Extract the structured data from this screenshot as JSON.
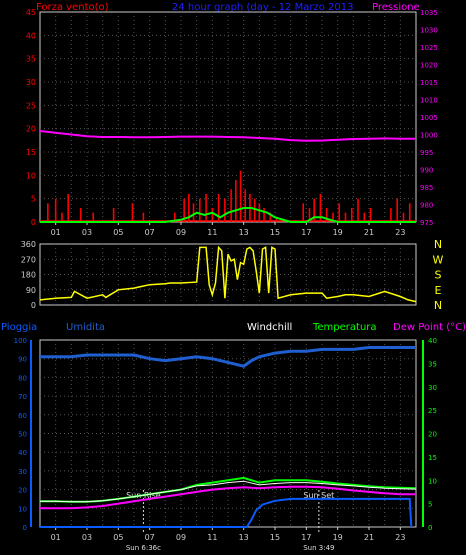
{
  "colors": {
    "background": "#000000",
    "grid": "#555555",
    "axis": "#cccccc",
    "wind": "#ff0000",
    "wind_avg": "#00ff00",
    "pressure": "#ff00ff",
    "wind_dir": "#ffff00",
    "humidity": "#1f5fd0",
    "rain": "#0a5cff",
    "temperature": "#00ff00",
    "windchill": "#ffffff",
    "dew_point": "#ff00ff",
    "title": "#2020ff",
    "left_label": "#ff0000",
    "right_label": "#ff00ff"
  },
  "top": {
    "left_label": "Forza vento(o)",
    "title": "24 hour graph (day - 12 Marzo 2013",
    "right_label": "Pressione",
    "left_ticks": [
      "45",
      "40",
      "35",
      "30",
      "25",
      "20",
      "15",
      "10",
      "5",
      "0"
    ],
    "right_ticks": [
      "1035",
      "1030",
      "1025",
      "1020",
      "1015",
      "1010",
      "1005",
      "1000",
      "995",
      "990",
      "985",
      "980",
      "975"
    ],
    "x_ticks": [
      "01",
      "03",
      "05",
      "07",
      "09",
      "11",
      "13",
      "15",
      "17",
      "19",
      "21",
      "23"
    ]
  },
  "mid": {
    "left_ticks": [
      "360",
      "270",
      "180",
      "90",
      "0"
    ],
    "compass": [
      "N",
      "W",
      "S",
      "E",
      "N"
    ],
    "x_ticks": [
      "01",
      "03",
      "05",
      "07",
      "09",
      "11",
      "13",
      "15",
      "17",
      "19",
      "21",
      "23"
    ]
  },
  "bottom": {
    "label_rain": "Pioggia",
    "label_humidity": "Umidita",
    "label_windchill": "Windchill",
    "label_temperature": "Temperatura",
    "label_dewpoint": "Dew Point (°C)",
    "left_ticks": [
      "100",
      "90",
      "80",
      "70",
      "60",
      "50",
      "40",
      "30",
      "20",
      "10",
      "0"
    ],
    "right_ticks": [
      "40",
      "35",
      "30",
      "25",
      "20",
      "15",
      "10",
      "5",
      "0"
    ],
    "x_ticks": [
      "01",
      "03",
      "05",
      "07",
      "09",
      "11",
      "13",
      "15",
      "17",
      "19",
      "21",
      "23"
    ],
    "sunrise": "Sun Rise",
    "sunset": "Sun Set",
    "sunrise_time": "Sun 6:36c",
    "sunset_time": "Sun 3:49"
  },
  "chart_data": [
    {
      "type": "line",
      "title": "24 hour graph (day - 12 Marzo 2013",
      "ylabel": "Forza vento(o)",
      "y2label": "Pressione",
      "ylim": [
        0,
        45
      ],
      "y2lim": [
        975,
        1035
      ],
      "xlim": [
        0,
        24
      ],
      "series": [
        {
          "name": "Pressione",
          "axis": "right",
          "x": [
            0,
            1,
            2,
            3,
            4,
            5,
            6,
            7,
            8,
            9,
            10,
            11,
            12,
            13,
            14,
            15,
            16,
            17,
            18,
            19,
            20,
            21,
            22,
            23,
            24
          ],
          "values": [
            1001,
            1000.5,
            1000,
            999.5,
            999.3,
            999.3,
            999.2,
            999.2,
            999.3,
            999.4,
            999.4,
            999.4,
            999.3,
            999.2,
            999,
            998.8,
            998.4,
            998.2,
            998.3,
            998.5,
            998.7,
            998.8,
            998.9,
            998.8,
            998.8
          ]
        },
        {
          "name": "Forza vento",
          "axis": "left",
          "x": [
            0.5,
            1.0,
            1.4,
            1.8,
            2.6,
            3.4,
            4.7,
            5.9,
            6.6,
            8.6,
            9.2,
            9.5,
            9.8,
            10.2,
            10.6,
            11.0,
            11.4,
            11.8,
            12.2,
            12.5,
            12.8,
            13.1,
            13.4,
            13.7,
            14.0,
            14.3,
            14.7,
            15.1,
            16.8,
            17.2,
            17.5,
            17.9,
            18.3,
            18.7,
            19.1,
            19.5,
            19.9,
            20.3,
            20.7,
            21.1,
            22.4,
            22.8,
            23.2,
            23.6
          ],
          "values": [
            4,
            5,
            2,
            6,
            3,
            2,
            3,
            4,
            2,
            2,
            5,
            6,
            4,
            5,
            6,
            3,
            6,
            5,
            7,
            9,
            11,
            7,
            6,
            5,
            4,
            3,
            2,
            1,
            4,
            3,
            5,
            6,
            3,
            2,
            4,
            2,
            3,
            5,
            2,
            3,
            3,
            5,
            2,
            4
          ]
        },
        {
          "name": "Vento medio",
          "axis": "left",
          "x": [
            0,
            8,
            9,
            9.5,
            10,
            10.5,
            11,
            11.5,
            12,
            12.5,
            13,
            13.5,
            14,
            14.5,
            15,
            16,
            17,
            17.5,
            18,
            18.5,
            19,
            24
          ],
          "values": [
            0,
            0,
            0.5,
            1,
            2,
            1.5,
            2,
            1,
            2,
            2.5,
            3,
            3,
            2.5,
            2,
            1,
            0,
            0,
            1,
            1,
            0.5,
            0,
            0
          ]
        }
      ]
    },
    {
      "type": "line",
      "title": "",
      "ylim": [
        0,
        360
      ],
      "xlim": [
        0,
        24
      ],
      "series": [
        {
          "name": "Direzione vento",
          "x": [
            0,
            1,
            2,
            2.2,
            3,
            4,
            4.2,
            5,
            6,
            6.5,
            7,
            8,
            8.3,
            9,
            10,
            10.2,
            10.4,
            10.6,
            10.8,
            11,
            11.2,
            11.4,
            11.6,
            11.8,
            12,
            12.2,
            12.4,
            12.6,
            12.8,
            13,
            13.2,
            13.4,
            13.6,
            13.8,
            14,
            14.2,
            14.4,
            14.6,
            14.8,
            15,
            15.2,
            16,
            17,
            18,
            18.3,
            19,
            19.5,
            20,
            21,
            22,
            23,
            23.5,
            24
          ],
          "values": [
            30,
            40,
            45,
            80,
            40,
            60,
            45,
            90,
            100,
            110,
            120,
            125,
            130,
            130,
            135,
            340,
            340,
            340,
            120,
            60,
            130,
            340,
            320,
            40,
            300,
            260,
            270,
            150,
            250,
            240,
            330,
            340,
            320,
            200,
            70,
            330,
            340,
            70,
            340,
            330,
            40,
            60,
            70,
            70,
            40,
            50,
            60,
            60,
            50,
            80,
            50,
            30,
            20
          ]
        }
      ]
    },
    {
      "type": "line",
      "title": "",
      "ylim": [
        0,
        100
      ],
      "y2lim": [
        0,
        40
      ],
      "xlim": [
        0,
        24
      ],
      "series": [
        {
          "name": "Umidita",
          "axis": "left",
          "x": [
            0,
            1,
            2,
            3,
            4,
            5,
            6,
            7,
            8,
            9,
            10,
            11,
            12,
            12.5,
            13,
            13.5,
            14,
            15,
            16,
            17,
            18,
            19,
            20,
            21,
            22,
            23,
            24
          ],
          "values": [
            91,
            91,
            91,
            92,
            92,
            92,
            92,
            90,
            89,
            90,
            91,
            90,
            88,
            87,
            86,
            89,
            91,
            93,
            94,
            94,
            95,
            95,
            95,
            96,
            96,
            96,
            96
          ]
        },
        {
          "name": "Pioggia",
          "axis": "left",
          "x": [
            0,
            13.2,
            13.5,
            13.8,
            14.2,
            15,
            16,
            17,
            18,
            19,
            20,
            21,
            22,
            23,
            23.6,
            23.7
          ],
          "values": [
            0,
            0,
            4,
            9,
            12,
            14,
            15,
            15,
            15,
            15,
            15,
            15,
            15,
            15,
            15,
            0
          ]
        },
        {
          "name": "Temperatura",
          "axis": "right",
          "x": [
            0,
            1,
            2,
            3,
            4,
            5,
            6,
            7,
            8,
            9,
            10,
            11,
            12,
            13,
            14,
            15,
            16,
            17,
            18,
            19,
            20,
            21,
            22,
            23,
            24
          ],
          "values": [
            5.5,
            5.5,
            5.4,
            5.4,
            5.6,
            6,
            6.5,
            7,
            7.5,
            8,
            9,
            9.5,
            10,
            10.5,
            9.5,
            10,
            10,
            10,
            9.7,
            9.3,
            9,
            8.7,
            8.5,
            8.4,
            8.3
          ]
        },
        {
          "name": "Windchill",
          "axis": "right",
          "x": [
            0,
            1,
            2,
            3,
            4,
            5,
            6,
            7,
            8,
            9,
            10,
            11,
            12,
            13,
            14,
            15,
            16,
            17,
            18,
            19,
            20,
            21,
            22,
            23,
            24
          ],
          "values": [
            5.5,
            5.5,
            5.4,
            5.4,
            5.6,
            6,
            6.5,
            7,
            7.5,
            8,
            8.8,
            9,
            9.5,
            9.8,
            9,
            9.3,
            9.5,
            9.5,
            9.3,
            9,
            8.8,
            8.5,
            8.3,
            8.2,
            8.1
          ]
        },
        {
          "name": "Dew Point",
          "axis": "right",
          "x": [
            0,
            1,
            2,
            3,
            4,
            5,
            6,
            7,
            8,
            9,
            10,
            11,
            12,
            13,
            14,
            15,
            16,
            17,
            18,
            19,
            20,
            21,
            22,
            23,
            24
          ],
          "values": [
            4,
            4,
            4,
            4.2,
            4.5,
            5,
            5.5,
            6,
            6.5,
            7,
            7.5,
            8,
            8.3,
            8.5,
            8.3,
            8.5,
            8.6,
            8.6,
            8.5,
            8.2,
            7.8,
            7.5,
            7.2,
            7,
            7
          ]
        }
      ]
    }
  ]
}
